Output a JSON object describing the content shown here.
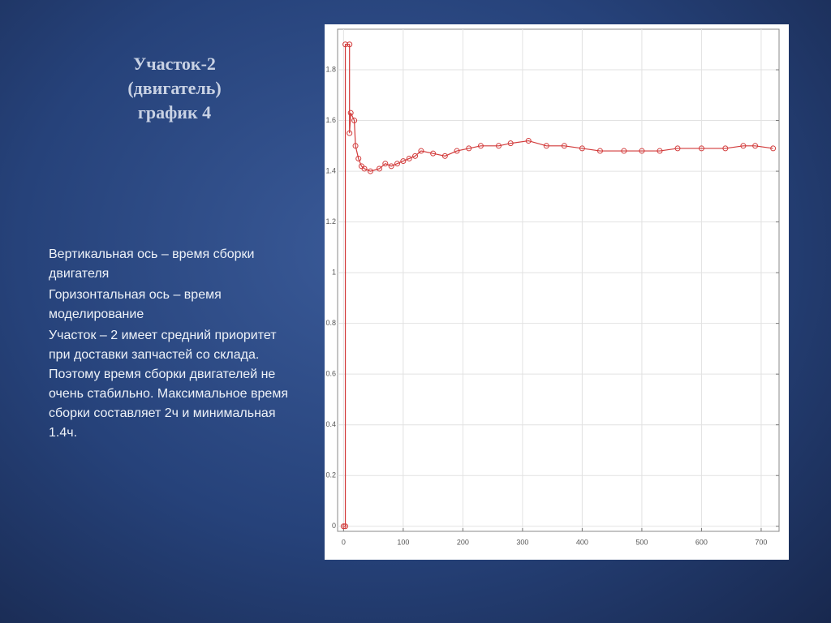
{
  "slide": {
    "title": [
      "Участок-2",
      "(двигатель)",
      "график 4"
    ],
    "paragraphs": [
      "Вертикальная ось – время сборки двигателя",
      "Горизонтальная ось – время моделирование",
      "Участок – 2 имеет средний приоритет при доставки запчастей со склада. Поэтому время сборки двигателей не очень стабильно. Максимальное время сборки составляет 2ч и минимальная 1.4ч."
    ]
  },
  "chart_data": {
    "type": "line",
    "markers": true,
    "grid": true,
    "color": "#d23a3a",
    "x": [
      0,
      3,
      3,
      10,
      10,
      12,
      18,
      20,
      25,
      30,
      35,
      45,
      60,
      70,
      80,
      90,
      100,
      110,
      120,
      130,
      150,
      170,
      190,
      210,
      230,
      260,
      280,
      310,
      340,
      370,
      400,
      430,
      470,
      500,
      530,
      560,
      600,
      640,
      670,
      690,
      720
    ],
    "values": [
      0,
      0,
      1.9,
      1.9,
      1.55,
      1.63,
      1.6,
      1.5,
      1.45,
      1.42,
      1.41,
      1.4,
      1.41,
      1.43,
      1.42,
      1.43,
      1.44,
      1.45,
      1.46,
      1.48,
      1.47,
      1.46,
      1.48,
      1.49,
      1.5,
      1.5,
      1.51,
      1.52,
      1.5,
      1.5,
      1.49,
      1.48,
      1.48,
      1.48,
      1.48,
      1.49,
      1.49,
      1.49,
      1.5,
      1.5,
      1.49
    ],
    "xlim": [
      -10,
      730
    ],
    "ylim": [
      -0.02,
      1.96
    ],
    "xticks": [
      0,
      100,
      200,
      300,
      400,
      500,
      600,
      700
    ],
    "yticks": [
      0,
      0.2,
      0.4,
      0.6,
      0.8,
      1,
      1.2,
      1.4,
      1.6,
      1.8
    ]
  }
}
